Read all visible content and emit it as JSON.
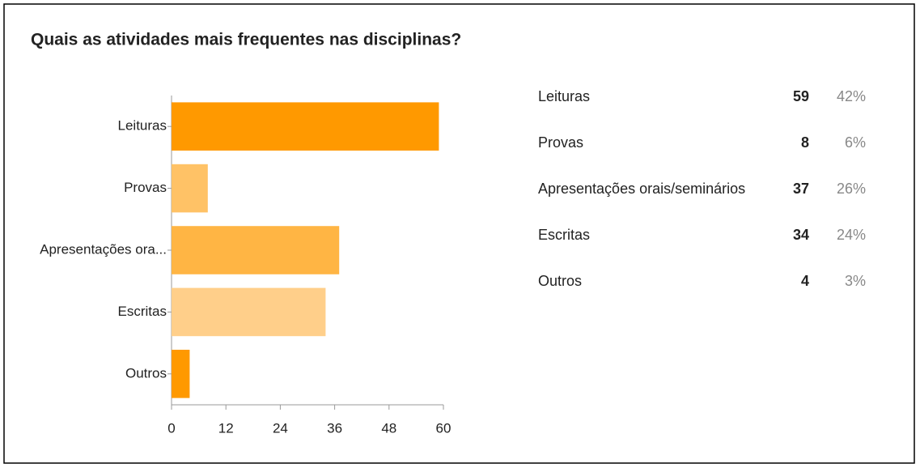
{
  "chart_data": {
    "type": "hbar",
    "title": "Quais as atividades mais frequentes nas disciplinas?",
    "categories": [
      "Leituras",
      "Provas",
      "Apresentações ora...",
      "Escritas",
      "Outros"
    ],
    "values": [
      59,
      8,
      37,
      34,
      4
    ],
    "colors": [
      "#ff9900",
      "#ffc266",
      "#ffb544",
      "#ffcf8a",
      "#ff9900"
    ],
    "xlim": [
      0,
      60
    ],
    "xticks": [
      0,
      12,
      24,
      36,
      48,
      60
    ]
  },
  "summary_table": {
    "rows": [
      {
        "label": "Leituras",
        "percent": "42%"
      },
      {
        "label": "Provas",
        "percent": "6%"
      },
      {
        "label": "Apresentações orais/seminários",
        "percent": "26%"
      },
      {
        "label": "Escritas",
        "percent": "24%"
      },
      {
        "label": "Outros",
        "percent": "3%"
      }
    ]
  }
}
